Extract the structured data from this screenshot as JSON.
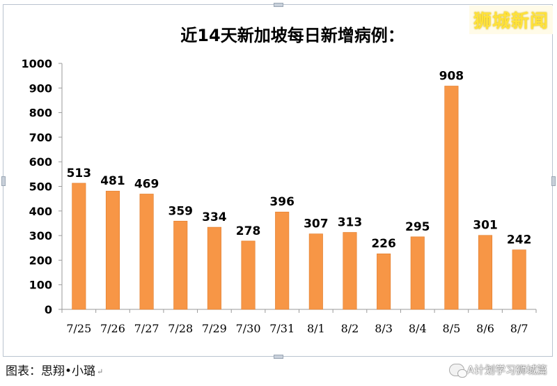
{
  "brand": "狮城新闻",
  "caption": "图表：思翔•小璐",
  "caption_mark": "↵",
  "watermark": "A计划学习狮城篇",
  "watermark_icon": "wechat-icon",
  "colors": {
    "bar": "#f79646",
    "bar_edge": "#e07b2a",
    "axis": "#9a9a9a",
    "text": "#000000"
  },
  "chart_data": {
    "type": "bar",
    "title": "近14天新加坡每日新增病例：",
    "categories": [
      "7/25",
      "7/26",
      "7/27",
      "7/28",
      "7/29",
      "7/30",
      "7/31",
      "8/1",
      "8/2",
      "8/3",
      "8/4",
      "8/5",
      "8/6",
      "8/7"
    ],
    "values": [
      513,
      481,
      469,
      359,
      334,
      278,
      396,
      307,
      313,
      226,
      295,
      908,
      301,
      242
    ],
    "yticks": [
      0,
      100,
      200,
      300,
      400,
      500,
      600,
      700,
      800,
      900,
      1000
    ],
    "ylim": [
      0,
      1000
    ],
    "xlabel": "",
    "ylabel": "",
    "grid": false,
    "data_labels": true
  }
}
